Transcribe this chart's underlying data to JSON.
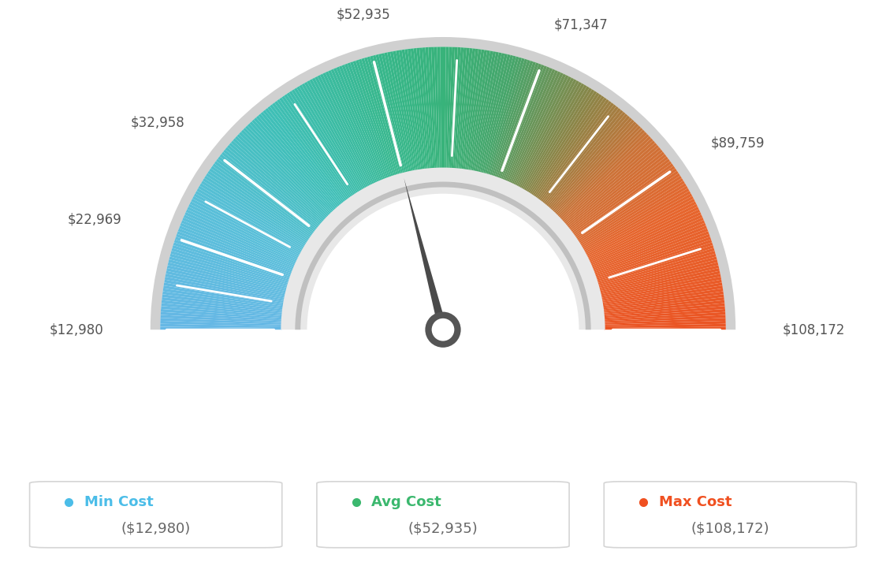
{
  "min_value": 12980,
  "max_value": 108172,
  "avg_value": 52935,
  "tick_values": [
    12980,
    22969,
    32958,
    52935,
    71347,
    89759,
    108172
  ],
  "tick_labels": [
    "$12,980",
    "$22,969",
    "$32,958",
    "$52,935",
    "$71,347",
    "$89,759",
    "$108,172"
  ],
  "color_stops": [
    [
      0.0,
      [
        0.4,
        0.72,
        0.9
      ]
    ],
    [
      0.15,
      [
        0.35,
        0.75,
        0.85
      ]
    ],
    [
      0.28,
      [
        0.25,
        0.75,
        0.72
      ]
    ],
    [
      0.42,
      [
        0.22,
        0.72,
        0.55
      ]
    ],
    [
      0.5,
      [
        0.22,
        0.7,
        0.48
      ]
    ],
    [
      0.58,
      [
        0.28,
        0.65,
        0.42
      ]
    ],
    [
      0.68,
      [
        0.55,
        0.52,
        0.28
      ]
    ],
    [
      0.76,
      [
        0.8,
        0.45,
        0.22
      ]
    ],
    [
      0.85,
      [
        0.9,
        0.4,
        0.18
      ]
    ],
    [
      1.0,
      [
        0.92,
        0.33,
        0.14
      ]
    ]
  ],
  "legend_items": [
    {
      "label": "Min Cost",
      "value": "($12,980)",
      "color": "#4bbde8"
    },
    {
      "label": "Avg Cost",
      "value": "($52,935)",
      "color": "#3bb86e"
    },
    {
      "label": "Max Cost",
      "value": "($108,172)",
      "color": "#f05020"
    }
  ],
  "bg_color": "#ffffff",
  "needle_color": "#4a4a4a",
  "outer_border_color": "#cccccc",
  "inner_channel_color": "#e8e8e8",
  "inner_dark_color": "#aaaaaa"
}
